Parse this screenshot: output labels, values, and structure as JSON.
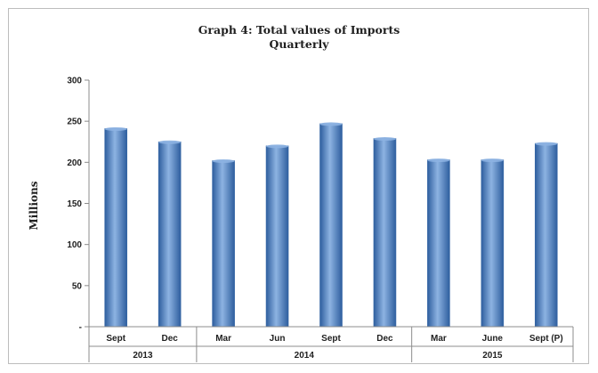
{
  "chart_data": {
    "type": "bar",
    "title": "Graph 4: Total values of Imports",
    "subtitle": "Quarterly",
    "ylabel": "Millions",
    "xlabel": "",
    "ylim": [
      0,
      300
    ],
    "ytick_values": [
      0,
      50,
      100,
      150,
      200,
      250,
      300
    ],
    "ytick_labels": [
      "-",
      "50",
      "100",
      "150",
      "200",
      "250",
      "300"
    ],
    "categories": [
      "Sept",
      "Dec",
      "Mar",
      "Jun",
      "Sept",
      "Dec",
      "Mar",
      "June",
      "Sept (P)"
    ],
    "values": [
      241,
      225,
      202,
      220,
      247,
      229,
      203,
      203,
      223
    ],
    "year_groups": [
      {
        "label": "2013",
        "count": 2
      },
      {
        "label": "2014",
        "count": 4
      },
      {
        "label": "2015",
        "count": 3
      }
    ],
    "grid": false,
    "legend": "none",
    "bar_color": "#4F81BD",
    "bar_light": "#8DB3E2",
    "bar_dark": "#2E5E9E"
  }
}
